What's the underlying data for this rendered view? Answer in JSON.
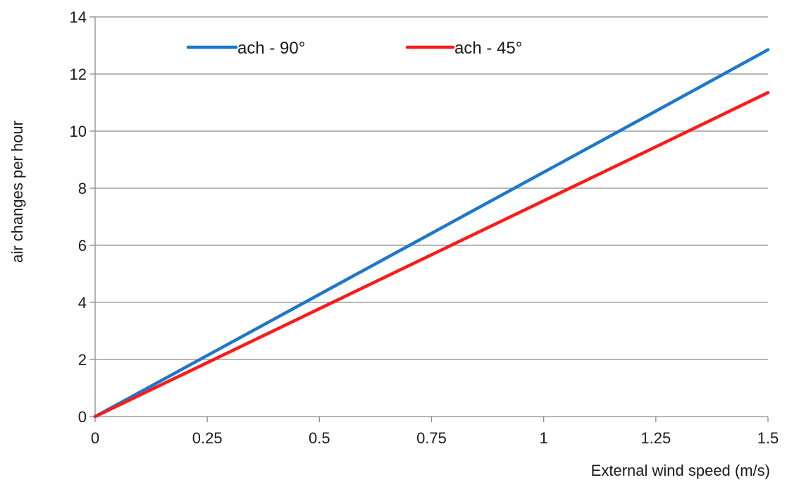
{
  "chart_data": {
    "type": "line",
    "title": "",
    "xlabel": "External wind speed (m/s)",
    "ylabel": "air changes per hour",
    "xlim": [
      0,
      1.5
    ],
    "ylim": [
      0,
      14
    ],
    "x_ticks": [
      "0",
      "0.25",
      "0.5",
      "0.75",
      "1",
      "1.25",
      "1.5"
    ],
    "y_ticks": [
      "0",
      "2",
      "4",
      "6",
      "8",
      "10",
      "12",
      "14"
    ],
    "grid": "horizontal",
    "legend_position": "top",
    "series": [
      {
        "name": "ach - 90°",
        "color": "#1f77c9",
        "x": [
          0,
          0.25,
          0.5,
          0.75,
          1,
          1.25,
          1.5
        ],
        "y": [
          0,
          2.14,
          4.28,
          6.42,
          8.56,
          10.7,
          12.85
        ]
      },
      {
        "name": "ach - 45°",
        "color": "#ff1a1a",
        "x": [
          0,
          0.25,
          0.5,
          0.75,
          1,
          1.25,
          1.5
        ],
        "y": [
          0,
          1.89,
          3.78,
          5.67,
          7.56,
          9.45,
          11.35
        ]
      }
    ]
  }
}
